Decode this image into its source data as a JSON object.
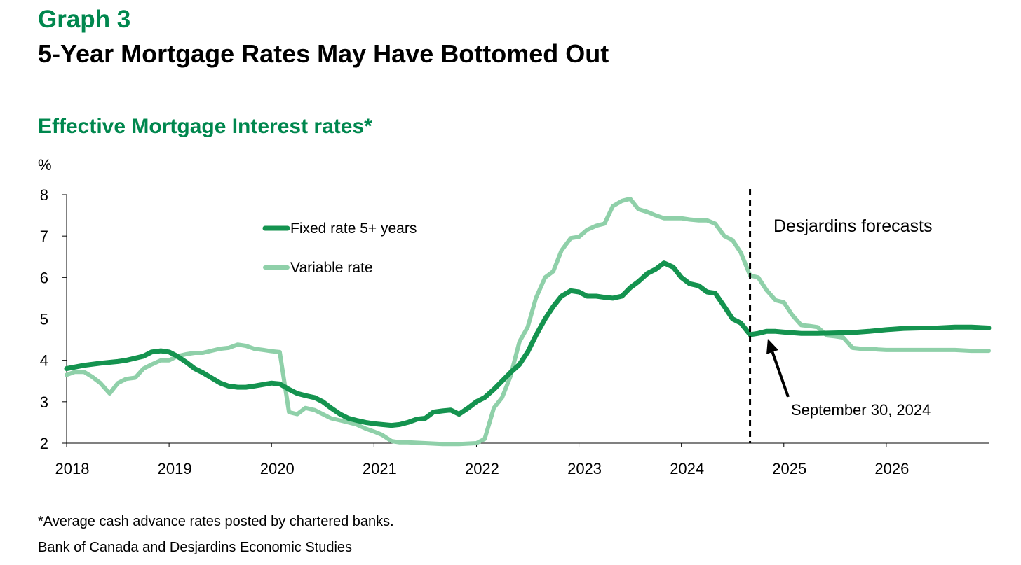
{
  "header": {
    "graph_label": "Graph 3",
    "title": "5-Year Mortgage Rates May Have Bottomed Out",
    "subtitle": "Effective Mortgage Interest rates*"
  },
  "footer": {
    "footnote": "*Average cash advance rates posted by chartered banks.",
    "source": "Bank of Canada and Desjardins  Economic Studies"
  },
  "colors": {
    "accent": "#00874e",
    "fixed": "#14934f",
    "variable": "#8fd0a9",
    "axis": "#000000"
  },
  "chart_data": {
    "type": "line",
    "ylabel": "%",
    "ylim": [
      2,
      8
    ],
    "yticks": [
      2,
      3,
      4,
      5,
      6,
      7,
      8
    ],
    "xlim": [
      2018,
      2027
    ],
    "xticks": [
      2018,
      2019,
      2020,
      2021,
      2022,
      2023,
      2024,
      2025,
      2026
    ],
    "grid": false,
    "legend_position": "top-left",
    "annotations": {
      "forecast_label": "Desjardins forecasts",
      "forecast_start": 2024.67,
      "arrow_label": "September 30, 2024",
      "arrow_target": {
        "x": 2024.83,
        "y": 4.62
      }
    },
    "series": [
      {
        "name": "Fixed rate 5+ years",
        "x": [
          2018.0,
          2018.17,
          2018.33,
          2018.5,
          2018.58,
          2018.75,
          2018.83,
          2018.92,
          2019.0,
          2019.08,
          2019.17,
          2019.25,
          2019.33,
          2019.5,
          2019.58,
          2019.67,
          2019.75,
          2019.83,
          2020.0,
          2020.08,
          2020.17,
          2020.25,
          2020.33,
          2020.42,
          2020.5,
          2020.58,
          2020.67,
          2020.75,
          2020.83,
          2020.92,
          2021.0,
          2021.08,
          2021.17,
          2021.25,
          2021.33,
          2021.42,
          2021.5,
          2021.58,
          2021.67,
          2021.75,
          2021.83,
          2021.92,
          2022.0,
          2022.08,
          2022.17,
          2022.25,
          2022.33,
          2022.42,
          2022.5,
          2022.58,
          2022.67,
          2022.75,
          2022.83,
          2022.92,
          2023.0,
          2023.08,
          2023.17,
          2023.25,
          2023.33,
          2023.42,
          2023.5,
          2023.58,
          2023.67,
          2023.75,
          2023.83,
          2023.92,
          2024.0,
          2024.08,
          2024.17,
          2024.25,
          2024.33,
          2024.42,
          2024.5,
          2024.58,
          2024.67,
          2024.75,
          2024.83,
          2024.92,
          2025.0,
          2025.17,
          2025.33,
          2025.5,
          2025.67,
          2025.83,
          2026.0,
          2026.17,
          2026.33,
          2026.5,
          2026.67,
          2026.83,
          2027.0
        ],
        "y": [
          3.8,
          3.88,
          3.93,
          3.97,
          4.0,
          4.1,
          4.2,
          4.23,
          4.2,
          4.1,
          3.95,
          3.8,
          3.7,
          3.45,
          3.38,
          3.35,
          3.35,
          3.38,
          3.45,
          3.43,
          3.3,
          3.2,
          3.15,
          3.1,
          3.0,
          2.85,
          2.7,
          2.6,
          2.55,
          2.5,
          2.47,
          2.45,
          2.43,
          2.45,
          2.5,
          2.58,
          2.6,
          2.75,
          2.78,
          2.8,
          2.7,
          2.85,
          3.0,
          3.1,
          3.3,
          3.5,
          3.7,
          3.9,
          4.2,
          4.6,
          5.0,
          5.3,
          5.55,
          5.68,
          5.65,
          5.55,
          5.55,
          5.52,
          5.5,
          5.55,
          5.75,
          5.9,
          6.1,
          6.2,
          6.35,
          6.25,
          6.0,
          5.85,
          5.8,
          5.65,
          5.62,
          5.3,
          5.0,
          4.9,
          4.62,
          4.65,
          4.7,
          4.7,
          4.68,
          4.65,
          4.65,
          4.66,
          4.67,
          4.7,
          4.74,
          4.77,
          4.78,
          4.78,
          4.8,
          4.8,
          4.78
        ]
      },
      {
        "name": "Variable rate",
        "x": [
          2018.0,
          2018.08,
          2018.17,
          2018.25,
          2018.33,
          2018.42,
          2018.5,
          2018.58,
          2018.67,
          2018.75,
          2018.83,
          2018.92,
          2019.0,
          2019.08,
          2019.17,
          2019.25,
          2019.33,
          2019.5,
          2019.58,
          2019.67,
          2019.75,
          2019.83,
          2019.92,
          2020.0,
          2020.08,
          2020.17,
          2020.25,
          2020.33,
          2020.42,
          2020.5,
          2020.58,
          2020.67,
          2020.75,
          2020.83,
          2020.92,
          2021.0,
          2021.08,
          2021.17,
          2021.25,
          2021.33,
          2021.5,
          2021.67,
          2021.83,
          2022.0,
          2022.08,
          2022.17,
          2022.25,
          2022.33,
          2022.42,
          2022.5,
          2022.58,
          2022.67,
          2022.75,
          2022.83,
          2022.92,
          2023.0,
          2023.08,
          2023.17,
          2023.25,
          2023.33,
          2023.42,
          2023.5,
          2023.58,
          2023.67,
          2023.75,
          2023.83,
          2023.92,
          2024.0,
          2024.08,
          2024.17,
          2024.25,
          2024.33,
          2024.42,
          2024.5,
          2024.58,
          2024.67,
          2024.75,
          2024.83,
          2024.92,
          2025.0,
          2025.08,
          2025.17,
          2025.25,
          2025.33,
          2025.42,
          2025.5,
          2025.58,
          2025.67,
          2025.75,
          2025.83,
          2025.92,
          2026.0,
          2026.17,
          2026.33,
          2026.5,
          2026.67,
          2026.83,
          2027.0
        ],
        "y": [
          3.65,
          3.72,
          3.72,
          3.6,
          3.45,
          3.2,
          3.45,
          3.55,
          3.58,
          3.8,
          3.9,
          4.0,
          4.0,
          4.1,
          4.15,
          4.18,
          4.18,
          4.28,
          4.3,
          4.38,
          4.35,
          4.28,
          4.25,
          4.22,
          4.2,
          2.75,
          2.7,
          2.85,
          2.8,
          2.7,
          2.6,
          2.55,
          2.5,
          2.45,
          2.35,
          2.28,
          2.2,
          2.05,
          2.02,
          2.02,
          2.0,
          1.98,
          1.98,
          2.0,
          2.1,
          2.85,
          3.1,
          3.6,
          4.45,
          4.8,
          5.5,
          6.0,
          6.15,
          6.65,
          6.95,
          6.98,
          7.15,
          7.25,
          7.3,
          7.72,
          7.85,
          7.9,
          7.65,
          7.58,
          7.5,
          7.43,
          7.43,
          7.43,
          7.4,
          7.38,
          7.38,
          7.3,
          7.0,
          6.9,
          6.6,
          6.05,
          6.0,
          5.7,
          5.45,
          5.4,
          5.1,
          4.85,
          4.83,
          4.8,
          4.6,
          4.58,
          4.55,
          4.3,
          4.28,
          4.28,
          4.26,
          4.25,
          4.25,
          4.25,
          4.25,
          4.25,
          4.23,
          4.23
        ]
      }
    ]
  }
}
